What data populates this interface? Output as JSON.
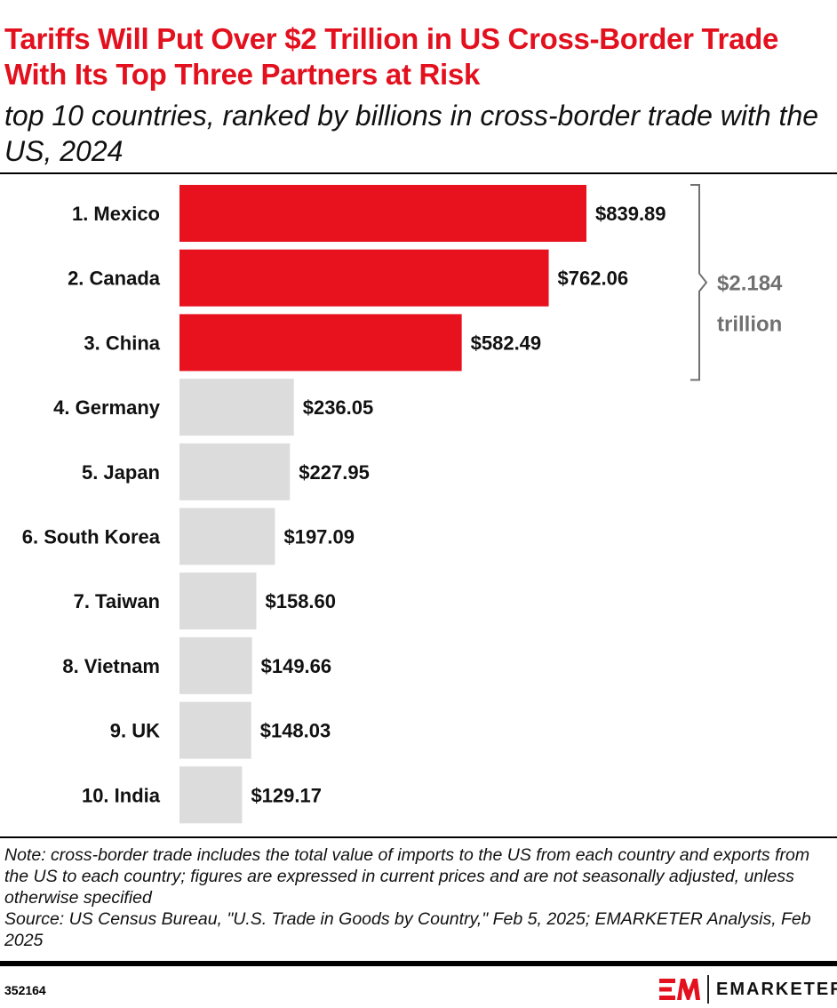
{
  "title": "Tariffs Will Put Over $2 Trillion in US Cross-Border Trade With Its Top Three Partners at Risk",
  "subtitle": "top 10 countries, ranked by billions in cross-border trade with the US, 2024",
  "chart_data": {
    "type": "bar",
    "orientation": "horizontal",
    "categories": [
      "1. Mexico",
      "2. Canada",
      "3. China",
      "4. Germany",
      "5. Japan",
      "6. South Korea",
      "7. Taiwan",
      "8. Vietnam",
      "9. UK",
      "10. India"
    ],
    "values": [
      839.89,
      762.06,
      582.49,
      236.05,
      227.95,
      197.09,
      158.6,
      149.66,
      148.03,
      129.17
    ],
    "data_labels": [
      "$839.89",
      "$762.06",
      "$582.49",
      "$236.05",
      "$227.95",
      "$197.09",
      "$158.60",
      "$149.66",
      "$148.03",
      "$129.17"
    ],
    "highlight_count": 3,
    "colors": {
      "highlight": "#e8111e",
      "default": "#dcdcdc",
      "annotation": "#707070"
    },
    "annotation": {
      "line1": "$2.184",
      "line2": "trillion"
    },
    "xlim": [
      0,
      839.89
    ],
    "grid": false,
    "legend": "none"
  },
  "note": "Note: cross-border trade includes the total value of imports to the US from each country and exports from the US to each country; figures are expressed in current prices and are not seasonally adjusted, unless otherwise specified",
  "source": "Source: US Census Bureau, \"U.S. Trade in Goods by Country,\" Feb 5, 2025; EMARKETER Analysis, Feb 2025",
  "footer": {
    "chart_id": "352164",
    "brand": "EMARKETER",
    "logo_mark": "EM"
  }
}
